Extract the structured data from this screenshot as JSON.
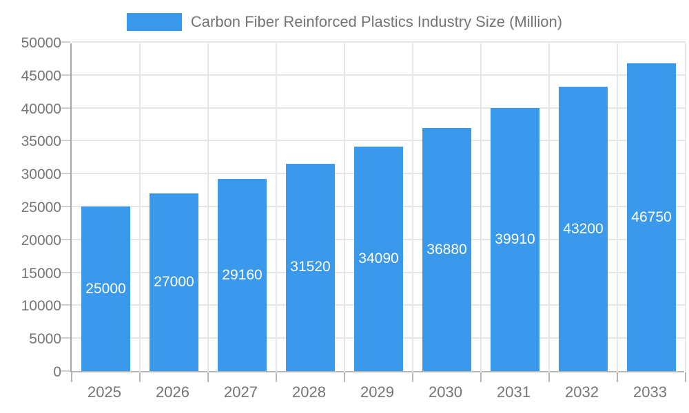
{
  "chart_data": {
    "type": "bar",
    "title": "Carbon Fiber Reinforced Plastics Industry Size (Million)",
    "series_name": "Carbon Fiber Reinforced Plastics Industry Size (Million)",
    "categories": [
      "2025",
      "2026",
      "2027",
      "2028",
      "2029",
      "2030",
      "2031",
      "2032",
      "2033"
    ],
    "values": [
      25000,
      27000,
      29160,
      31520,
      34090,
      36880,
      39910,
      43200,
      46750
    ],
    "xlabel": "",
    "ylabel": "",
    "ylim": [
      0,
      50000
    ],
    "ytick_step": 5000,
    "yticks": [
      0,
      5000,
      10000,
      15000,
      20000,
      25000,
      30000,
      35000,
      40000,
      45000,
      50000
    ],
    "grid": true,
    "legend_position": "top-center",
    "value_label_position": "inside-center",
    "colors": {
      "bar": "#3B99EC",
      "value_label": "#FFFFFF",
      "axis_text": "#757575",
      "legend_text": "#757575",
      "gridline": "#E6E6E6",
      "axis_line": "#A6A6A6",
      "axis_line_bottom": "#B5B5B5",
      "y_tick": "#D0D0D0",
      "background": "#FFFFFF"
    }
  }
}
